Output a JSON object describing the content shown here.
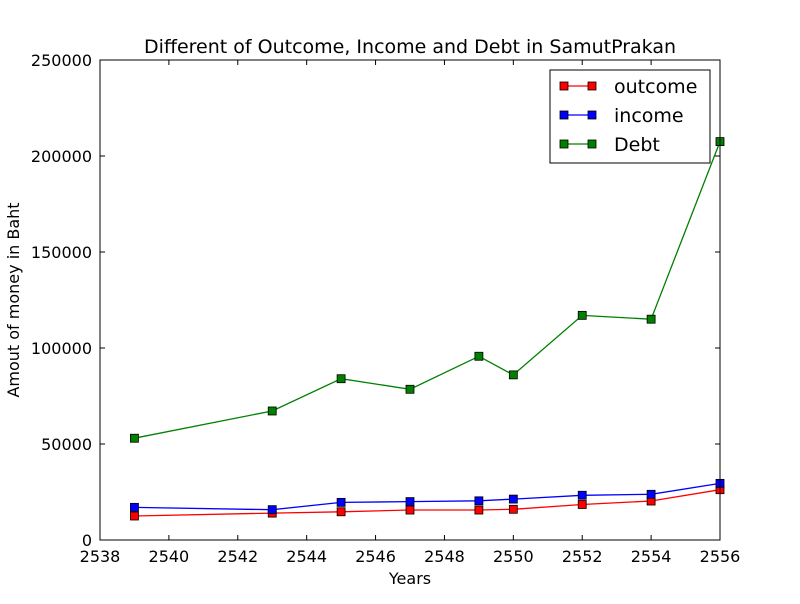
{
  "chart_data": {
    "type": "line",
    "title": "Different of Outcome, Income and Debt in SamutPrakan",
    "xlabel": "Years",
    "ylabel": "Amout of money in Baht",
    "xlim": [
      2538,
      2556
    ],
    "ylim": [
      0,
      250000
    ],
    "xticks": [
      2538,
      2540,
      2542,
      2544,
      2546,
      2548,
      2550,
      2552,
      2554,
      2556
    ],
    "yticks": [
      0,
      50000,
      100000,
      150000,
      200000,
      250000
    ],
    "grid": false,
    "legend_position": "top-right",
    "x": [
      2539,
      2543,
      2545,
      2547,
      2549,
      2550,
      2552,
      2554,
      2556
    ],
    "series": [
      {
        "name": "outcome",
        "color": "#ff0000",
        "marker": "square",
        "values": [
          12500,
          14000,
          14700,
          15600,
          15600,
          16000,
          18500,
          20300,
          26200
        ]
      },
      {
        "name": "income",
        "color": "#0000ff",
        "marker": "square",
        "values": [
          17000,
          15800,
          19600,
          20000,
          20400,
          21300,
          23300,
          23800,
          29500
        ]
      },
      {
        "name": "Debt",
        "color": "#008000",
        "marker": "square",
        "values": [
          53000,
          67200,
          84000,
          78500,
          95700,
          86000,
          117000,
          115000,
          207500
        ]
      }
    ]
  }
}
